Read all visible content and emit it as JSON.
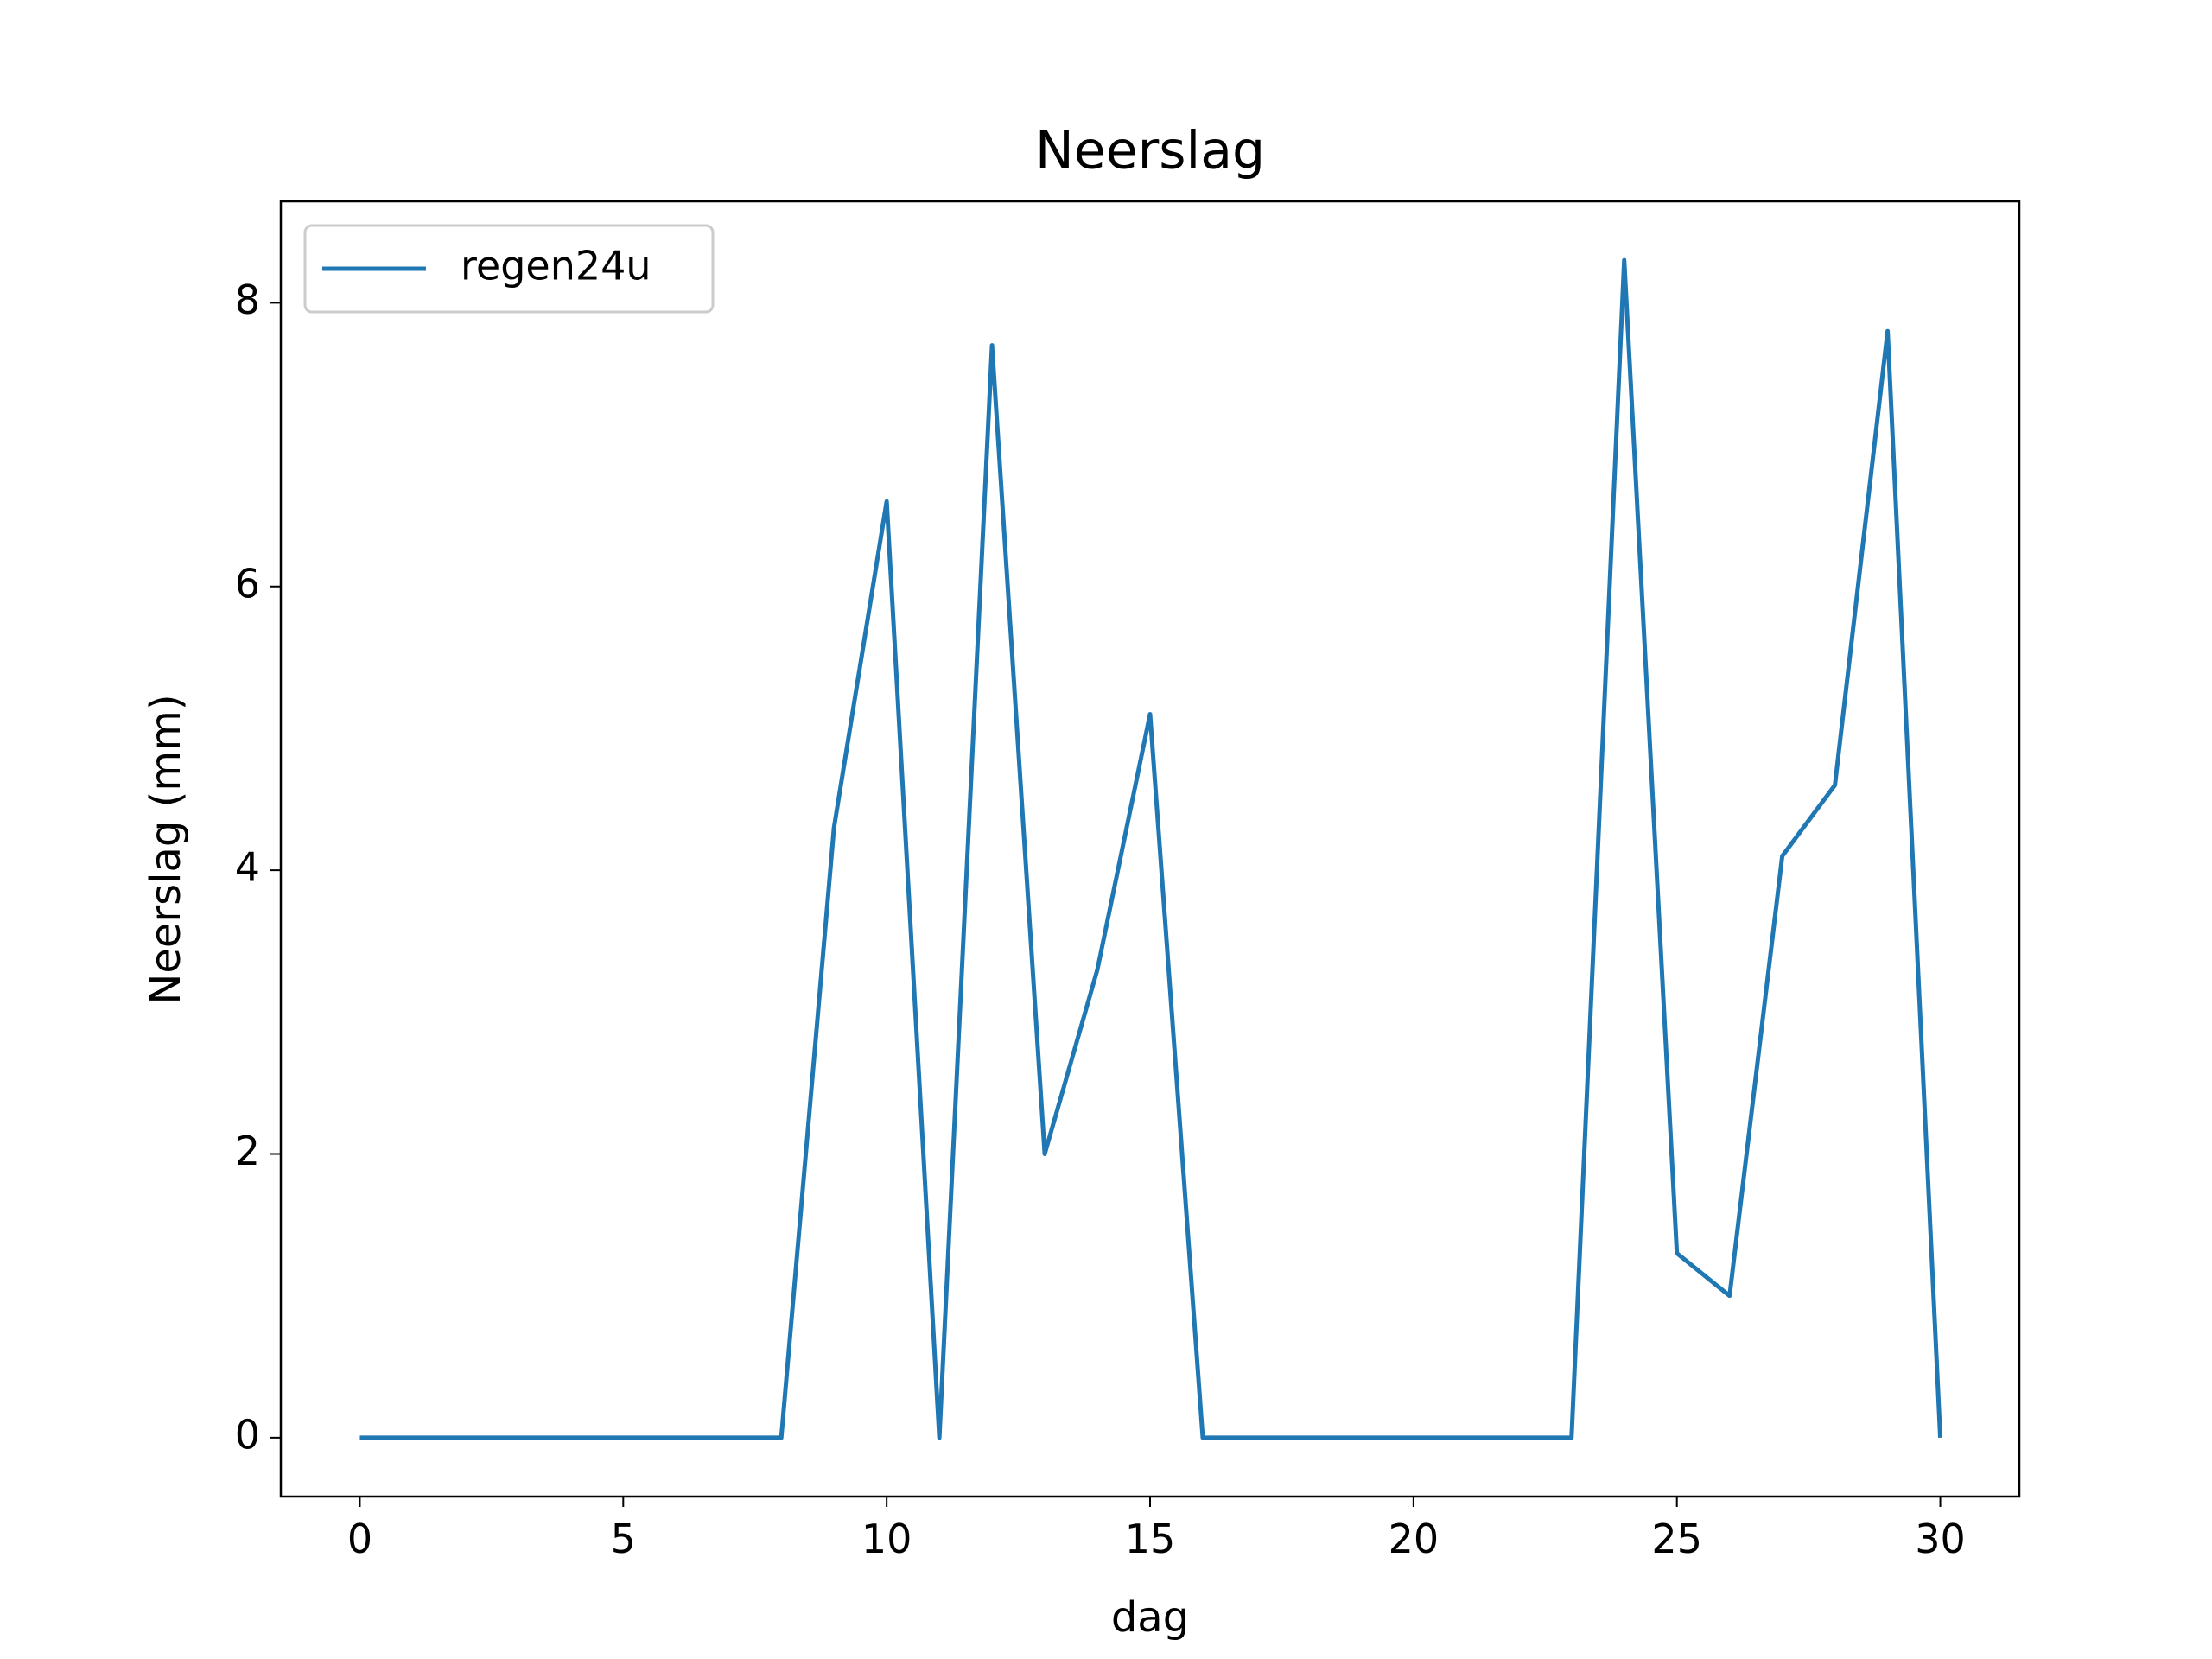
{
  "chart_data": {
    "type": "line",
    "title": "Neerslag",
    "xlabel": "dag",
    "ylabel": "Neerslag (mm)",
    "x": [
      0,
      1,
      2,
      3,
      4,
      5,
      6,
      7,
      8,
      9,
      10,
      11,
      12,
      13,
      14,
      15,
      16,
      17,
      18,
      19,
      20,
      21,
      22,
      23,
      24,
      25,
      26,
      27,
      28,
      29,
      30
    ],
    "series": [
      {
        "name": "regen24u",
        "color": "#1f77b4",
        "values": [
          0,
          0,
          0,
          0,
          0,
          0,
          0,
          0,
          0,
          4.3,
          6.6,
          0,
          7.7,
          2.0,
          3.3,
          5.1,
          0,
          0,
          0,
          0,
          0,
          0,
          0,
          0,
          8.3,
          1.3,
          1.0,
          4.1,
          4.6,
          7.8,
          0
        ]
      }
    ],
    "xlim": [
      -1.5,
      31.5
    ],
    "xticks": [
      0,
      5,
      10,
      15,
      20,
      25,
      30
    ],
    "ylim": [
      -0.415,
      8.715
    ],
    "yticks": [
      0,
      2,
      4,
      6,
      8
    ],
    "legend": "upper left"
  }
}
